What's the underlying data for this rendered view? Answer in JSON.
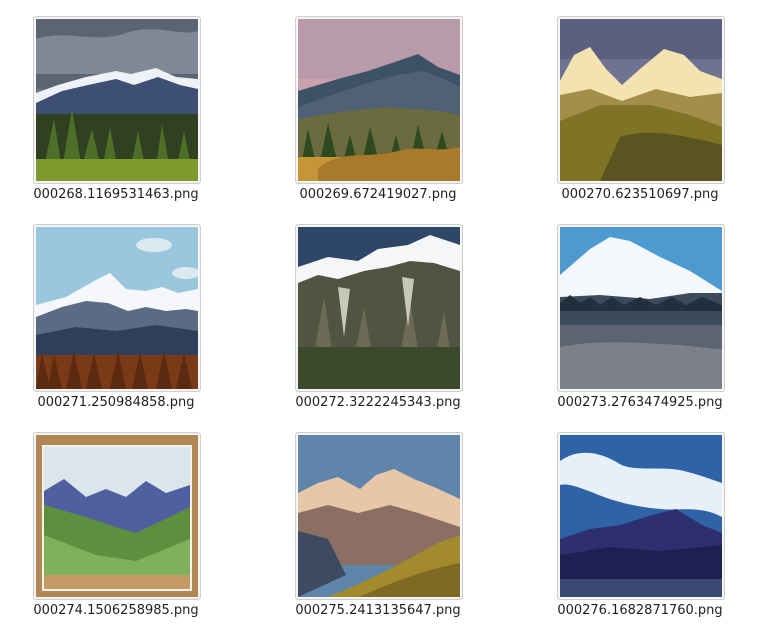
{
  "files": [
    {
      "name": "000268.1169531463.png",
      "thumbnail": "snowy-peaks-cloudy-forest"
    },
    {
      "name": "000269.672419027.png",
      "thumbnail": "pink-sky-mountain-autumn-forest"
    },
    {
      "name": "000270.623510697.png",
      "thumbnail": "painted-golden-hills"
    },
    {
      "name": "000271.250984858.png",
      "thumbnail": "blue-sky-peaks-autumn-trees"
    },
    {
      "name": "000272.3222245343.png",
      "thumbnail": "snow-capped-rock-slope"
    },
    {
      "name": "000273.2763474925.png",
      "thumbnail": "snowy-ridge-gray-scree"
    },
    {
      "name": "000274.1506258985.png",
      "thumbnail": "painted-canvas-green-valley"
    },
    {
      "name": "000275.2413135647.png",
      "thumbnail": "sunlit-peaks-grassy-slope"
    },
    {
      "name": "000276.1682871760.png",
      "thumbnail": "blue-painted-mountain-clouds"
    }
  ]
}
